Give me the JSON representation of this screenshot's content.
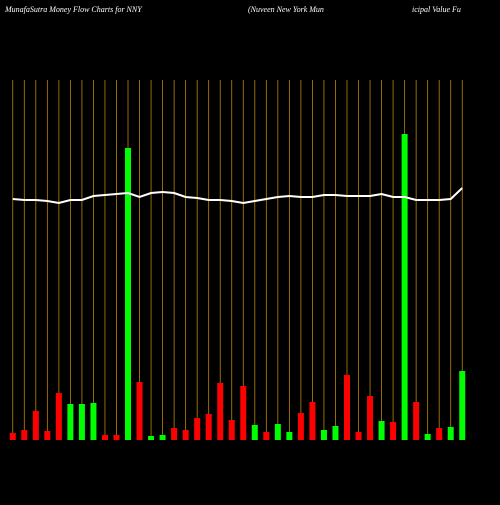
{
  "chart_data": {
    "type": "bar",
    "title": "MunafaSutra  Money Flow  Charts for NNY",
    "subtitle_parts": [
      "(Nuveen  New York Mun",
      "icipal Value  Fu"
    ],
    "categories": [
      null,
      null,
      null,
      null,
      null,
      null,
      null,
      null,
      null,
      null,
      null,
      null,
      null,
      null,
      null,
      null,
      null,
      null,
      null,
      null,
      null,
      null,
      null,
      null,
      null,
      null,
      null,
      null,
      null,
      null,
      null,
      null,
      null,
      null,
      null,
      null,
      null,
      null,
      null,
      null
    ],
    "series": [
      {
        "values": [
          7,
          10,
          29,
          9,
          47,
          36,
          36,
          37,
          5,
          5,
          292,
          58,
          4,
          5,
          12,
          10,
          22,
          26,
          57,
          20,
          54,
          15,
          8,
          16,
          8,
          27,
          38,
          10,
          14,
          65,
          8,
          44,
          19,
          18,
          306,
          38,
          6,
          12,
          13,
          69
        ],
        "colors": [
          "#ff0000",
          "#ff0000",
          "#ff0000",
          "#ff0000",
          "#ff0000",
          "#00ff00",
          "#00ff00",
          "#00ff00",
          "#ff0000",
          "#ff0000",
          "#00ff00",
          "#ff0000",
          "#00ff00",
          "#00ff00",
          "#ff0000",
          "#ff0000",
          "#ff0000",
          "#ff0000",
          "#ff0000",
          "#ff0000",
          "#ff0000",
          "#00ff00",
          "#ff0000",
          "#00ff00",
          "#00ff00",
          "#ff0000",
          "#ff0000",
          "#00ff00",
          "#00ff00",
          "#ff0000",
          "#ff0000",
          "#ff0000",
          "#00ff00",
          "#ff0000",
          "#00ff00",
          "#ff0000",
          "#00ff00",
          "#ff0000",
          "#00ff00",
          "#00ff00"
        ]
      },
      {
        "type": "line",
        "color": "#ffffff",
        "values": [
          241,
          240,
          240,
          239,
          237,
          240,
          240,
          244,
          245,
          246,
          247,
          243,
          247,
          248,
          247,
          243,
          242,
          240,
          240,
          239,
          237,
          239,
          241,
          243,
          244,
          243,
          243,
          245,
          245,
          244,
          244,
          244,
          246,
          243,
          243,
          240,
          240,
          240,
          241,
          252
        ]
      }
    ],
    "ylim": [
      0,
      360
    ],
    "gridline_color": "#b8860b",
    "background": "#000000"
  }
}
